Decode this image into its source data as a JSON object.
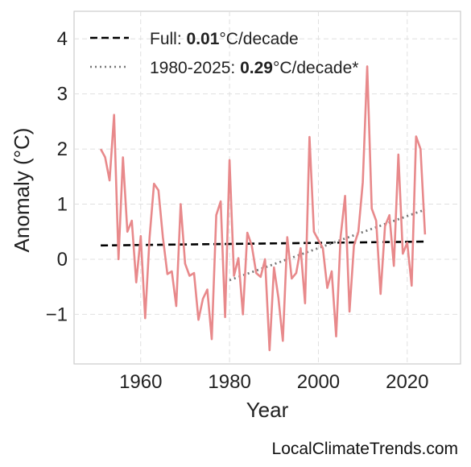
{
  "chart_data": {
    "type": "line",
    "xlabel": "Year",
    "ylabel": "Anomaly (°C)",
    "xlim": [
      1945,
      2032
    ],
    "ylim": [
      -1.9,
      4.5
    ],
    "xticks": [
      1960,
      1980,
      2000,
      2020
    ],
    "yticks": [
      -1,
      0,
      1,
      2,
      3,
      4
    ],
    "ytick_labels": [
      "−1",
      "0",
      "1",
      "2",
      "3",
      "4"
    ],
    "grid": true,
    "legend_position": "top-left",
    "series": [
      {
        "name": "",
        "color": "#e8898b",
        "x": [
          1951,
          1952,
          1953,
          1954,
          1955,
          1956,
          1957,
          1958,
          1959,
          1960,
          1961,
          1962,
          1963,
          1964,
          1965,
          1966,
          1967,
          1968,
          1969,
          1970,
          1971,
          1972,
          1973,
          1974,
          1975,
          1976,
          1977,
          1978,
          1979,
          1980,
          1981,
          1982,
          1983,
          1984,
          1985,
          1986,
          1987,
          1988,
          1989,
          1990,
          1991,
          1992,
          1993,
          1994,
          1995,
          1996,
          1997,
          1998,
          1999,
          2000,
          2001,
          2002,
          2003,
          2004,
          2005,
          2006,
          2007,
          2008,
          2009,
          2010,
          2011,
          2012,
          2013,
          2014,
          2015,
          2016,
          2017,
          2018,
          2019,
          2020,
          2021,
          2022,
          2023,
          2024
        ],
        "values": [
          2.0,
          1.85,
          1.43,
          2.62,
          0.0,
          1.85,
          0.5,
          0.7,
          -0.42,
          0.42,
          -1.07,
          0.4,
          1.37,
          1.25,
          0.4,
          -0.27,
          -0.22,
          -0.85,
          1.0,
          -0.08,
          -0.3,
          -0.25,
          -1.1,
          -0.72,
          -0.55,
          -1.45,
          0.8,
          1.05,
          -1.05,
          1.8,
          -0.3,
          0.02,
          -1.0,
          0.48,
          0.25,
          -0.25,
          -0.32,
          0.0,
          -1.65,
          -0.15,
          -0.7,
          -1.48,
          0.4,
          -0.35,
          -0.25,
          0.2,
          -0.8,
          2.22,
          0.5,
          0.35,
          0.2,
          -0.52,
          -0.22,
          -1.4,
          0.4,
          1.15,
          -0.95,
          0.25,
          0.5,
          1.4,
          3.5,
          0.92,
          0.7,
          -0.63,
          0.6,
          0.8,
          -0.12,
          1.9,
          0.1,
          0.3,
          -0.48,
          2.23,
          2.0,
          0.45
        ]
      }
    ],
    "trends": [
      {
        "name": "Full",
        "rate_value": "0.01",
        "unit": "°C/decade",
        "style": "dashed",
        "color": "#000000",
        "x": [
          1951,
          2024
        ],
        "y": [
          0.25,
          0.32
        ]
      },
      {
        "name": "1980-2025",
        "rate_value": "0.29",
        "unit": "°C/decade*",
        "style": "dotted",
        "color": "#777777",
        "x": [
          1980,
          2024
        ],
        "y": [
          -0.38,
          0.9
        ]
      }
    ]
  },
  "legend": {
    "full_prefix": "Full: ",
    "full_rate": "0.01",
    "full_unit": "°C/decade",
    "recent_prefix": "1980-2025: ",
    "recent_rate": "0.29",
    "recent_unit": "°C/decade*"
  },
  "watermark": "LocalClimateTrends.com"
}
